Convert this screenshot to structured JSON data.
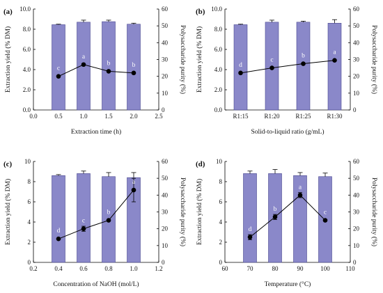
{
  "colors": {
    "bar_fill": "#8a88c9",
    "bar_stroke": "#4a4890",
    "line": "#000000",
    "letter_color": "#ffffff",
    "axis": "#000000"
  },
  "chart_data": [
    {
      "type": "bar",
      "panel": "(a)",
      "xlabel": "Extraction time (h)",
      "ylabel_left": "Extraction yield (% DM)",
      "ylabel_right": "Polysaccharide purity (%)",
      "x_axis_kind": "numeric",
      "x_ticks": [
        "0.0",
        "0.5",
        "1.0",
        "1.5",
        "2.0",
        "2.5"
      ],
      "xlim": [
        0,
        2.5
      ],
      "y_left_ticks": [
        "0.0",
        "2.0",
        "4.0",
        "6.0",
        "8.0",
        "10.0"
      ],
      "ylim_left": [
        0,
        10
      ],
      "y_right_ticks": [
        "0",
        "10",
        "20",
        "30",
        "40",
        "50",
        "60"
      ],
      "ylim_right": [
        0,
        60
      ],
      "x": [
        0.5,
        1.0,
        1.5,
        2.0
      ],
      "bar_values": [
        8.45,
        8.7,
        8.75,
        8.5
      ],
      "bar_errors": [
        0.05,
        0.2,
        0.15,
        0.1
      ],
      "line_values": [
        20,
        27,
        23,
        22
      ],
      "line_errors": [
        0,
        0,
        0,
        0
      ],
      "letters": [
        "c",
        "a",
        "b",
        "b"
      ]
    },
    {
      "type": "bar",
      "panel": "(b)",
      "xlabel": "Solid-to-liquid ratio (g/mL)",
      "ylabel_left": "Extraction yield (% DM)",
      "ylabel_right": "Polysaccharide purity (%)",
      "x_axis_kind": "categorical",
      "categories": [
        "R1:15",
        "R1:20",
        "R1:25",
        "R1:30"
      ],
      "y_left_ticks": [
        "0.0",
        "2.0",
        "4.0",
        "6.0",
        "8.0",
        "10.0"
      ],
      "ylim_left": [
        0,
        10
      ],
      "y_right_ticks": [
        "0",
        "10",
        "20",
        "30",
        "40",
        "50",
        "60"
      ],
      "ylim_right": [
        0,
        60
      ],
      "bar_values": [
        8.45,
        8.7,
        8.7,
        8.6
      ],
      "bar_errors": [
        0.05,
        0.2,
        0.1,
        0.35
      ],
      "line_values": [
        22,
        25,
        27.5,
        29.5
      ],
      "line_errors": [
        0,
        0,
        0,
        0
      ],
      "letters": [
        "d",
        "c",
        "b",
        "a"
      ]
    },
    {
      "type": "bar",
      "panel": "(c)",
      "xlabel": "Concentration of NaOH (mol/L)",
      "ylabel_left": "Extraction yield (% DM)",
      "ylabel_right": "Polysaccharide purity (%)",
      "x_axis_kind": "numeric",
      "x_ticks": [
        "0.2",
        "0.4",
        "0.6",
        "0.8",
        "1.0",
        "1.2"
      ],
      "xlim": [
        0.2,
        1.2
      ],
      "y_left_ticks": [
        "0",
        "2",
        "4",
        "6",
        "8",
        "10"
      ],
      "ylim_left": [
        0,
        10
      ],
      "y_right_ticks": [
        "0",
        "10",
        "20",
        "30",
        "40",
        "50",
        "60"
      ],
      "ylim_right": [
        0,
        60
      ],
      "x": [
        0.4,
        0.6,
        0.8,
        1.0
      ],
      "bar_values": [
        8.6,
        8.8,
        8.5,
        8.4
      ],
      "bar_errors": [
        0.1,
        0.25,
        0.4,
        0.5
      ],
      "line_values": [
        14,
        20,
        25,
        43
      ],
      "line_errors": [
        0,
        1.5,
        0,
        7
      ],
      "letters": [
        "d",
        "c",
        "b",
        "a"
      ]
    },
    {
      "type": "bar",
      "panel": "(d)",
      "xlabel": "Temperature (°C)",
      "ylabel_left": "Extraction yield (% DM)",
      "ylabel_right": "Polysaccharide purity (%)",
      "x_axis_kind": "numeric",
      "x_ticks": [
        "60",
        "70",
        "80",
        "90",
        "100",
        "110"
      ],
      "xlim": [
        60,
        110
      ],
      "y_left_ticks": [
        "0",
        "2",
        "4",
        "6",
        "8",
        "10"
      ],
      "ylim_left": [
        0,
        10
      ],
      "y_right_ticks": [
        "0",
        "10",
        "20",
        "30",
        "40",
        "50",
        "60"
      ],
      "ylim_right": [
        0,
        60
      ],
      "x": [
        70,
        80,
        90,
        100
      ],
      "bar_values": [
        8.8,
        8.8,
        8.6,
        8.5
      ],
      "bar_errors": [
        0.25,
        0.4,
        0.3,
        0.35
      ],
      "line_values": [
        15,
        27,
        40,
        25
      ],
      "line_errors": [
        1.5,
        1.5,
        1.5,
        0
      ],
      "letters": [
        "d",
        "b",
        "a",
        "c"
      ]
    }
  ]
}
